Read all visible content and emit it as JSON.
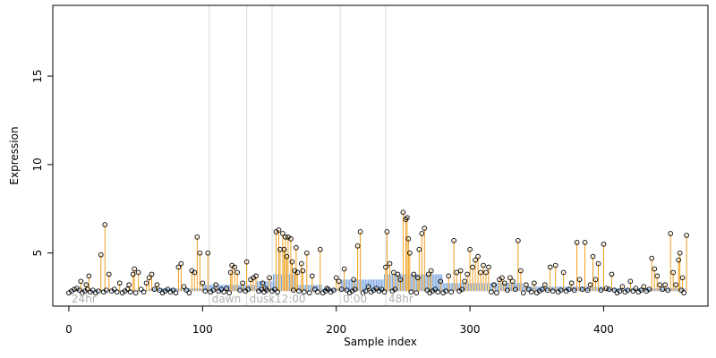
{
  "chart_data": {
    "type": "scatter",
    "title": "",
    "xlabel": "Sample index",
    "ylabel": "Expression",
    "xlim": [
      -12,
      478
    ],
    "ylim": [
      2.0,
      19.0
    ],
    "x_ticks": [
      0,
      100,
      200,
      300,
      400
    ],
    "y_ticks": [
      5,
      10,
      15
    ],
    "grid": false,
    "legend": "none",
    "colors": {
      "stem": "#f0a020",
      "baseline_bar": "#7aa6e0",
      "point_edge": "#000000",
      "divider": "#d9d9d9",
      "section_label": "#b0b0b0"
    },
    "baseline": {
      "name": "",
      "segments": [
        {
          "x": [
            0,
            60
          ],
          "y": 2.9
        },
        {
          "x": [
            60,
            100
          ],
          "y": 3.0
        },
        {
          "x": [
            100,
            140
          ],
          "y": 3.2
        },
        {
          "x": [
            140,
            153
          ],
          "y": 3.4
        },
        {
          "x": [
            153,
            170
          ],
          "y": 3.8
        },
        {
          "x": [
            170,
            190
          ],
          "y": 3.2
        },
        {
          "x": [
            190,
            204
          ],
          "y": 3.0
        },
        {
          "x": [
            204,
            236
          ],
          "y": 3.5
        },
        {
          "x": [
            236,
            280
          ],
          "y": 3.8
        },
        {
          "x": [
            280,
            340
          ],
          "y": 3.3
        },
        {
          "x": [
            340,
            400
          ],
          "y": 3.1
        },
        {
          "x": [
            400,
            462
          ],
          "y": 3.0
        }
      ]
    },
    "sections": [
      {
        "label": "24hr",
        "start": 0,
        "divider_at": null
      },
      {
        "label": "dawn",
        "start": 105,
        "divider_at": 105
      },
      {
        "label": "dusk",
        "start": 133,
        "divider_at": 133
      },
      {
        "label": "12:00",
        "start": 152,
        "divider_at": 152
      },
      {
        "label": "0:00",
        "start": 203,
        "divider_at": 203
      },
      {
        "label": "48hr",
        "start": 237,
        "divider_at": 237
      }
    ],
    "series": [
      {
        "name": "",
        "peaks": [
          {
            "x": 6,
            "y": 3.0
          },
          {
            "x": 9,
            "y": 3.4
          },
          {
            "x": 13,
            "y": 3.2
          },
          {
            "x": 15,
            "y": 3.7
          },
          {
            "x": 24,
            "y": 4.9
          },
          {
            "x": 27,
            "y": 6.6
          },
          {
            "x": 30,
            "y": 3.8
          },
          {
            "x": 38,
            "y": 3.3
          },
          {
            "x": 45,
            "y": 3.2
          },
          {
            "x": 48,
            "y": 3.8
          },
          {
            "x": 49,
            "y": 4.1
          },
          {
            "x": 52,
            "y": 3.9
          },
          {
            "x": 58,
            "y": 3.3
          },
          {
            "x": 60,
            "y": 3.6
          },
          {
            "x": 62,
            "y": 3.8
          },
          {
            "x": 66,
            "y": 3.2
          },
          {
            "x": 82,
            "y": 4.2
          },
          {
            "x": 84,
            "y": 4.4
          },
          {
            "x": 86,
            "y": 3.1
          },
          {
            "x": 92,
            "y": 4.0
          },
          {
            "x": 94,
            "y": 3.9
          },
          {
            "x": 96,
            "y": 5.9
          },
          {
            "x": 98,
            "y": 5.0
          },
          {
            "x": 100,
            "y": 3.3
          },
          {
            "x": 104,
            "y": 5.0
          },
          {
            "x": 110,
            "y": 3.2
          },
          {
            "x": 118,
            "y": 3.0
          },
          {
            "x": 121,
            "y": 3.9
          },
          {
            "x": 122,
            "y": 4.3
          },
          {
            "x": 124,
            "y": 4.2
          },
          {
            "x": 126,
            "y": 3.9
          },
          {
            "x": 130,
            "y": 3.3
          },
          {
            "x": 133,
            "y": 4.5
          },
          {
            "x": 136,
            "y": 3.5
          },
          {
            "x": 138,
            "y": 3.6
          },
          {
            "x": 140,
            "y": 3.7
          },
          {
            "x": 145,
            "y": 3.3
          },
          {
            "x": 147,
            "y": 3.0
          },
          {
            "x": 150,
            "y": 3.6
          },
          {
            "x": 155,
            "y": 6.2
          },
          {
            "x": 157,
            "y": 6.3
          },
          {
            "x": 158,
            "y": 5.2
          },
          {
            "x": 160,
            "y": 6.1
          },
          {
            "x": 161,
            "y": 5.2
          },
          {
            "x": 162,
            "y": 5.9
          },
          {
            "x": 163,
            "y": 4.8
          },
          {
            "x": 164,
            "y": 5.9
          },
          {
            "x": 166,
            "y": 5.8
          },
          {
            "x": 167,
            "y": 4.5
          },
          {
            "x": 169,
            "y": 4.0
          },
          {
            "x": 170,
            "y": 5.3
          },
          {
            "x": 171,
            "y": 3.9
          },
          {
            "x": 174,
            "y": 4.4
          },
          {
            "x": 175,
            "y": 4.0
          },
          {
            "x": 178,
            "y": 5.0
          },
          {
            "x": 182,
            "y": 3.7
          },
          {
            "x": 188,
            "y": 5.2
          },
          {
            "x": 193,
            "y": 3.0
          },
          {
            "x": 200,
            "y": 3.6
          },
          {
            "x": 202,
            "y": 3.4
          },
          {
            "x": 206,
            "y": 4.1
          },
          {
            "x": 213,
            "y": 3.5
          },
          {
            "x": 216,
            "y": 5.4
          },
          {
            "x": 218,
            "y": 6.2
          },
          {
            "x": 224,
            "y": 3.1
          },
          {
            "x": 230,
            "y": 3.0
          },
          {
            "x": 237,
            "y": 4.2
          },
          {
            "x": 238,
            "y": 6.2
          },
          {
            "x": 240,
            "y": 4.4
          },
          {
            "x": 243,
            "y": 3.9
          },
          {
            "x": 246,
            "y": 3.8
          },
          {
            "x": 248,
            "y": 3.5
          },
          {
            "x": 250,
            "y": 7.3
          },
          {
            "x": 252,
            "y": 6.9
          },
          {
            "x": 253,
            "y": 7.0
          },
          {
            "x": 254,
            "y": 5.8
          },
          {
            "x": 255,
            "y": 5.0
          },
          {
            "x": 258,
            "y": 3.8
          },
          {
            "x": 261,
            "y": 3.6
          },
          {
            "x": 262,
            "y": 5.2
          },
          {
            "x": 264,
            "y": 6.1
          },
          {
            "x": 266,
            "y": 6.4
          },
          {
            "x": 269,
            "y": 3.8
          },
          {
            "x": 271,
            "y": 4.0
          },
          {
            "x": 278,
            "y": 3.4
          },
          {
            "x": 284,
            "y": 3.7
          },
          {
            "x": 288,
            "y": 5.7
          },
          {
            "x": 290,
            "y": 3.9
          },
          {
            "x": 293,
            "y": 4.0
          },
          {
            "x": 296,
            "y": 3.4
          },
          {
            "x": 298,
            "y": 3.8
          },
          {
            "x": 300,
            "y": 5.2
          },
          {
            "x": 302,
            "y": 4.2
          },
          {
            "x": 304,
            "y": 4.6
          },
          {
            "x": 306,
            "y": 4.8
          },
          {
            "x": 308,
            "y": 3.9
          },
          {
            "x": 310,
            "y": 4.3
          },
          {
            "x": 312,
            "y": 3.9
          },
          {
            "x": 314,
            "y": 4.2
          },
          {
            "x": 318,
            "y": 3.2
          },
          {
            "x": 322,
            "y": 3.5
          },
          {
            "x": 324,
            "y": 3.6
          },
          {
            "x": 326,
            "y": 3.3
          },
          {
            "x": 330,
            "y": 3.6
          },
          {
            "x": 332,
            "y": 3.4
          },
          {
            "x": 336,
            "y": 5.7
          },
          {
            "x": 338,
            "y": 4.0
          },
          {
            "x": 342,
            "y": 3.2
          },
          {
            "x": 348,
            "y": 3.3
          },
          {
            "x": 356,
            "y": 3.2
          },
          {
            "x": 360,
            "y": 4.2
          },
          {
            "x": 364,
            "y": 4.3
          },
          {
            "x": 370,
            "y": 3.9
          },
          {
            "x": 376,
            "y": 3.3
          },
          {
            "x": 380,
            "y": 5.6
          },
          {
            "x": 382,
            "y": 3.5
          },
          {
            "x": 386,
            "y": 5.6
          },
          {
            "x": 390,
            "y": 3.2
          },
          {
            "x": 392,
            "y": 4.8
          },
          {
            "x": 394,
            "y": 3.5
          },
          {
            "x": 396,
            "y": 4.4
          },
          {
            "x": 400,
            "y": 5.5
          },
          {
            "x": 402,
            "y": 3.0
          },
          {
            "x": 406,
            "y": 3.8
          },
          {
            "x": 414,
            "y": 3.1
          },
          {
            "x": 420,
            "y": 3.4
          },
          {
            "x": 424,
            "y": 3.0
          },
          {
            "x": 430,
            "y": 3.1
          },
          {
            "x": 436,
            "y": 4.7
          },
          {
            "x": 438,
            "y": 4.1
          },
          {
            "x": 440,
            "y": 3.7
          },
          {
            "x": 442,
            "y": 3.2
          },
          {
            "x": 446,
            "y": 3.2
          },
          {
            "x": 450,
            "y": 6.1
          },
          {
            "x": 452,
            "y": 3.9
          },
          {
            "x": 454,
            "y": 3.2
          },
          {
            "x": 456,
            "y": 4.6
          },
          {
            "x": 457,
            "y": 5.0
          },
          {
            "x": 459,
            "y": 3.6
          },
          {
            "x": 462,
            "y": 6.0
          }
        ]
      }
    ]
  }
}
